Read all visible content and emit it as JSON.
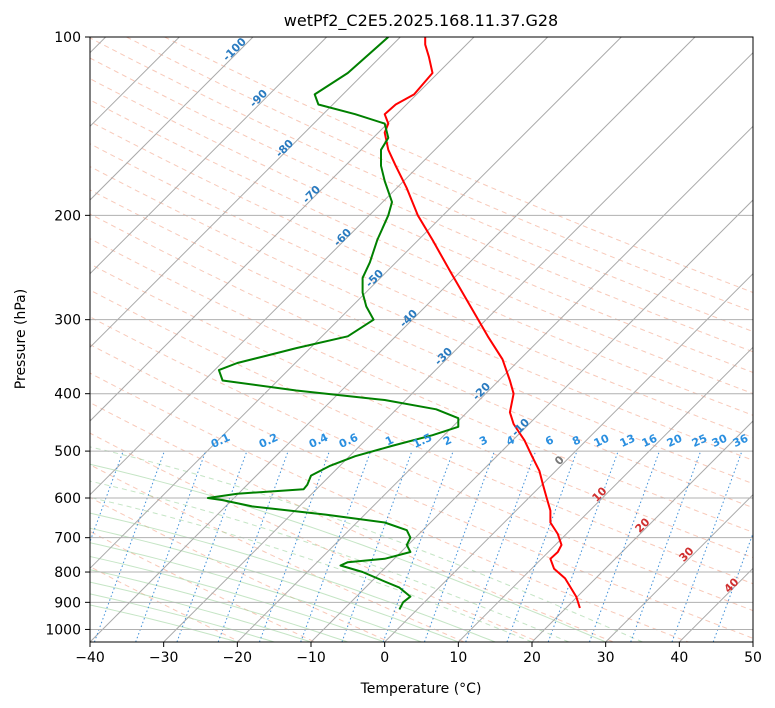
{
  "chart_data": {
    "type": "line",
    "title": "wetPf2_C2E5.2025.168.11.37.G28",
    "xlabel": "Temperature (°C)",
    "ylabel": "Pressure (hPa)",
    "xlim": [
      -40,
      50
    ],
    "ylim": [
      1050,
      100
    ],
    "y_scale": "log",
    "grid": true,
    "x_ticks": [
      -40,
      -30,
      -20,
      -10,
      0,
      10,
      20,
      30,
      40,
      50
    ],
    "x_tick_labels": [
      "−40",
      "−30",
      "−20",
      "−10",
      "0",
      "10",
      "20",
      "30",
      "40",
      "50"
    ],
    "y_ticks": [
      100,
      200,
      300,
      400,
      500,
      600,
      700,
      800,
      900,
      1000
    ],
    "y_tick_labels": [
      "100",
      "200",
      "300",
      "400",
      "500",
      "600",
      "700",
      "800",
      "900",
      "1000"
    ],
    "series": [
      {
        "color": "#ff0000",
        "x": [
          26.5,
          26.0,
          24.5,
          23.0,
          22.5,
          23.5,
          24.0,
          23.5,
          22.5,
          22.5,
          22.0,
          21.5,
          21.0,
          20.0,
          19.0,
          17.5,
          17.0,
          17.5,
          17.0,
          16.0,
          14.0,
          12.0,
          9.0,
          6.5,
          4.5,
          3.0,
          1.5,
          0.5,
          0.0,
          0.5,
          0.0,
          1.5,
          4.0,
          6.5,
          6.0,
          5.5,
          5.5
        ],
        "y": [
          920,
          880,
          820,
          790,
          760,
          740,
          720,
          690,
          660,
          630,
          600,
          570,
          540,
          510,
          480,
          450,
          430,
          400,
          380,
          350,
          320,
          290,
          250,
          220,
          200,
          180,
          165,
          155,
          145,
          140,
          135,
          130,
          125,
          115,
          108,
          103,
          100
        ]
      },
      {
        "color": "#008000",
        "x": [
          2.0,
          2.5,
          3.5,
          2.5,
          2.0,
          0.0,
          -3.0,
          -6.0,
          -5.0,
          0.0,
          3.5,
          3.0,
          3.5,
          3.0,
          0.0,
          -8.0,
          -18.0,
          -22.0,
          -24.0,
          -20.0,
          -11.0,
          -10.5,
          -10.0,
          -7.5,
          -4.0,
          1.0,
          6.5,
          10.0,
          10.0,
          7.0,
          0.0,
          -12.0,
          -22.0,
          -22.5,
          -20.0,
          -16.0,
          -12.0,
          -5.0,
          -1.5,
          -2.5,
          -3.0,
          -3.0,
          -2.0,
          -1.0,
          0.5,
          1.0,
          0.0,
          -0.5,
          -0.5,
          0.5,
          0.0,
          -4.0,
          -9.0,
          -9.5,
          -5.0,
          0.5
        ],
        "y": [
          925,
          900,
          880,
          860,
          850,
          830,
          800,
          780,
          770,
          760,
          740,
          720,
          700,
          680,
          660,
          640,
          620,
          605,
          600,
          590,
          580,
          570,
          550,
          530,
          510,
          490,
          470,
          455,
          440,
          425,
          410,
          395,
          380,
          365,
          355,
          345,
          335,
          320,
          300,
          285,
          270,
          255,
          240,
          220,
          200,
          190,
          175,
          165,
          155,
          148,
          140,
          135,
          130,
          125,
          115,
          100
        ]
      }
    ],
    "isotherm_labels": [
      "-100",
      "-90",
      "-80",
      "-70",
      "-60",
      "-50",
      "-40",
      "-30",
      "-20",
      "-10",
      "0",
      "10",
      "20",
      "30",
      "40"
    ],
    "mixing_ratio_labels": [
      "0.1",
      "0.2",
      "0.4",
      "0.6",
      "1",
      "1.5",
      "2",
      "3",
      "4",
      "6",
      "8",
      "10",
      "13",
      "16",
      "20",
      "25",
      "30",
      "36"
    ]
  }
}
